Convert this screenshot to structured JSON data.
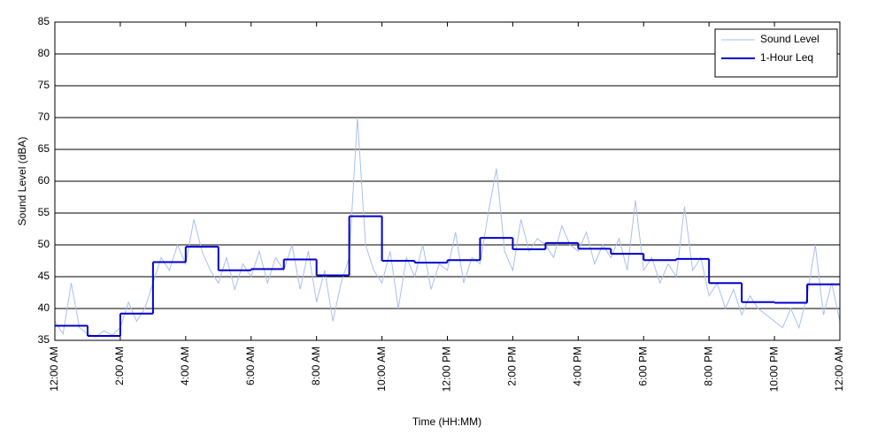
{
  "chart_data": {
    "type": "line",
    "xlabel": "Time (HH:MM)",
    "ylabel": "Sound Level (dBA)",
    "xlim": [
      0,
      24
    ],
    "ylim": [
      35,
      85
    ],
    "xticks": [
      {
        "value": 0,
        "label": "12:00 AM"
      },
      {
        "value": 2,
        "label": "2:00 AM"
      },
      {
        "value": 4,
        "label": "4:00 AM"
      },
      {
        "value": 6,
        "label": "6:00 AM"
      },
      {
        "value": 8,
        "label": "8:00 AM"
      },
      {
        "value": 10,
        "label": "10:00 AM"
      },
      {
        "value": 12,
        "label": "12:00 PM"
      },
      {
        "value": 14,
        "label": "2:00 PM"
      },
      {
        "value": 16,
        "label": "4:00 PM"
      },
      {
        "value": 18,
        "label": "6:00 PM"
      },
      {
        "value": 20,
        "label": "8:00 PM"
      },
      {
        "value": 22,
        "label": "10:00 PM"
      },
      {
        "value": 24,
        "label": "12:00 AM"
      }
    ],
    "yticks": [
      35,
      40,
      45,
      50,
      55,
      60,
      65,
      70,
      75,
      80,
      85
    ],
    "grid": true,
    "legend": "upper right",
    "series": [
      {
        "name": "Sound Level",
        "color": "#a9bff0",
        "style": "line",
        "x": [
          0,
          0.25,
          0.5,
          0.75,
          1,
          1.25,
          1.5,
          1.75,
          2,
          2.25,
          2.5,
          2.75,
          3,
          3.25,
          3.5,
          3.75,
          4,
          4.25,
          4.5,
          4.75,
          5,
          5.25,
          5.5,
          5.75,
          6,
          6.25,
          6.5,
          6.75,
          7,
          7.25,
          7.5,
          7.75,
          8,
          8.25,
          8.5,
          8.75,
          9,
          9.25,
          9.5,
          9.75,
          10,
          10.25,
          10.5,
          10.75,
          11,
          11.25,
          11.5,
          11.75,
          12,
          12.25,
          12.5,
          12.75,
          13,
          13.25,
          13.5,
          13.75,
          14,
          14.25,
          14.5,
          14.75,
          15,
          15.25,
          15.5,
          15.75,
          16,
          16.25,
          16.5,
          16.75,
          17,
          17.25,
          17.5,
          17.75,
          18,
          18.25,
          18.5,
          18.75,
          19,
          19.25,
          19.5,
          19.75,
          20,
          20.25,
          20.5,
          20.75,
          21,
          21.25,
          21.5,
          21.75,
          22,
          22.25,
          22.5,
          22.75,
          23,
          23.25,
          23.5,
          23.75,
          24
        ],
        "values": [
          38,
          36,
          44,
          37,
          36,
          35.5,
          36.5,
          35.8,
          37,
          41,
          38,
          40,
          44,
          48,
          46,
          50,
          47,
          54,
          49,
          46,
          44,
          48,
          43,
          47,
          45,
          49,
          44,
          48,
          46,
          50,
          43,
          49,
          41,
          46,
          38,
          44,
          48,
          70,
          50,
          46,
          44,
          49,
          40,
          48,
          45,
          50,
          43,
          47,
          46,
          52,
          44,
          48,
          47,
          55,
          62,
          49,
          46,
          54,
          49,
          51,
          50,
          48,
          53,
          50,
          49,
          52,
          47,
          50,
          48,
          51,
          46,
          57,
          46,
          48,
          44,
          47,
          45,
          56,
          46,
          48,
          42,
          44,
          40,
          43,
          39,
          42,
          40,
          39,
          38,
          37,
          40,
          37,
          42,
          50,
          39,
          44,
          38
        ]
      },
      {
        "name": "1-Hour Leq",
        "color": "#0000cc",
        "style": "step",
        "x": [
          0,
          1,
          2,
          3,
          4,
          5,
          6,
          7,
          8,
          9,
          10,
          11,
          12,
          13,
          14,
          15,
          16,
          17,
          18,
          19,
          20,
          21,
          22,
          23
        ],
        "values": [
          37.3,
          35.7,
          39.2,
          47.3,
          49.7,
          46.0,
          46.2,
          47.7,
          45.2,
          54.5,
          47.5,
          47.2,
          47.6,
          51.1,
          49.3,
          50.3,
          49.4,
          48.6,
          47.6,
          47.8,
          44.0,
          41.0,
          40.9,
          43.8
        ]
      }
    ]
  }
}
